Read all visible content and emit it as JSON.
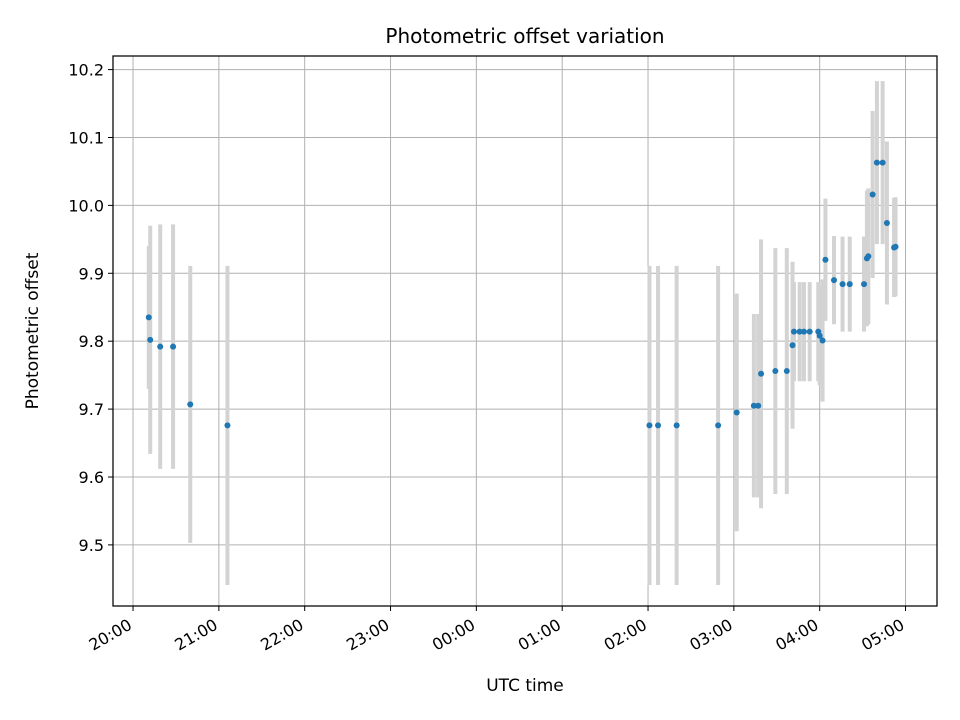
{
  "chart_data": {
    "type": "scatter",
    "title": "Photometric offset variation",
    "xlabel": "UTC time",
    "ylabel": "Photometric offset",
    "grid": true,
    "xlim": [
      "2000-01-01T19:46",
      "2000-01-02T05:22"
    ],
    "ylim": [
      9.41,
      10.22
    ],
    "x_ticks": [
      {
        "value": "2000-01-01T20:00",
        "label": "20:00"
      },
      {
        "value": "2000-01-01T21:00",
        "label": "21:00"
      },
      {
        "value": "2000-01-01T22:00",
        "label": "22:00"
      },
      {
        "value": "2000-01-01T23:00",
        "label": "23:00"
      },
      {
        "value": "2000-01-02T00:00",
        "label": "00:00"
      },
      {
        "value": "2000-01-02T01:00",
        "label": "01:00"
      },
      {
        "value": "2000-01-02T02:00",
        "label": "02:00"
      },
      {
        "value": "2000-01-02T03:00",
        "label": "03:00"
      },
      {
        "value": "2000-01-02T04:00",
        "label": "04:00"
      },
      {
        "value": "2000-01-02T05:00",
        "label": "05:00"
      }
    ],
    "y_ticks": [
      9.5,
      9.6,
      9.7,
      9.8,
      9.9,
      10.0,
      10.1,
      10.2
    ],
    "y_tick_labels": [
      "9.5",
      "9.6",
      "9.7",
      "9.8",
      "9.9",
      "10.0",
      "10.1",
      "10.2"
    ],
    "colors": {
      "points": "#1f77b4",
      "errorbars": "#d3d3d3",
      "grid": "#b0b0b0"
    },
    "points": [
      {
        "t": "2000-01-01T20:11",
        "y": 9.835,
        "err": 0.105
      },
      {
        "t": "2000-01-01T20:12",
        "y": 9.802,
        "err": 0.168
      },
      {
        "t": "2000-01-01T20:19",
        "y": 9.792,
        "err": 0.18
      },
      {
        "t": "2000-01-01T20:28",
        "y": 9.792,
        "err": 0.18
      },
      {
        "t": "2000-01-01T20:40",
        "y": 9.707,
        "err": 0.204
      },
      {
        "t": "2000-01-01T21:06",
        "y": 9.676,
        "err": 0.235
      },
      {
        "t": "2000-01-02T02:01",
        "y": 9.676,
        "err": 0.235
      },
      {
        "t": "2000-01-02T02:07",
        "y": 9.676,
        "err": 0.235
      },
      {
        "t": "2000-01-02T02:20",
        "y": 9.676,
        "err": 0.235
      },
      {
        "t": "2000-01-02T02:49",
        "y": 9.676,
        "err": 0.235
      },
      {
        "t": "2000-01-02T03:02",
        "y": 9.695,
        "err": 0.175
      },
      {
        "t": "2000-01-02T03:14",
        "y": 9.705,
        "err": 0.135
      },
      {
        "t": "2000-01-02T03:17",
        "y": 9.705,
        "err": 0.135
      },
      {
        "t": "2000-01-02T03:19",
        "y": 9.752,
        "err": 0.198
      },
      {
        "t": "2000-01-02T03:29",
        "y": 9.756,
        "err": 0.181
      },
      {
        "t": "2000-01-02T03:37",
        "y": 9.756,
        "err": 0.181
      },
      {
        "t": "2000-01-02T03:41",
        "y": 9.794,
        "err": 0.123
      },
      {
        "t": "2000-01-02T03:42",
        "y": 9.814,
        "err": 0.073
      },
      {
        "t": "2000-01-02T03:46",
        "y": 9.814,
        "err": 0.073
      },
      {
        "t": "2000-01-02T03:49",
        "y": 9.814,
        "err": 0.073
      },
      {
        "t": "2000-01-02T03:53",
        "y": 9.814,
        "err": 0.073
      },
      {
        "t": "2000-01-02T03:59",
        "y": 9.814,
        "err": 0.073
      },
      {
        "t": "2000-01-02T04:00",
        "y": 9.808,
        "err": 0.073
      },
      {
        "t": "2000-01-02T04:02",
        "y": 9.801,
        "err": 0.09
      },
      {
        "t": "2000-01-02T04:04",
        "y": 9.92,
        "err": 0.09
      },
      {
        "t": "2000-01-02T04:10",
        "y": 9.89,
        "err": 0.065
      },
      {
        "t": "2000-01-02T04:16",
        "y": 9.884,
        "err": 0.07
      },
      {
        "t": "2000-01-02T04:21",
        "y": 9.884,
        "err": 0.07
      },
      {
        "t": "2000-01-02T04:31",
        "y": 9.884,
        "err": 0.07
      },
      {
        "t": "2000-01-02T04:33",
        "y": 9.922,
        "err": 0.1
      },
      {
        "t": "2000-01-02T04:34",
        "y": 9.925,
        "err": 0.1
      },
      {
        "t": "2000-01-02T04:37",
        "y": 10.016,
        "err": 0.123
      },
      {
        "t": "2000-01-02T04:40",
        "y": 10.063,
        "err": 0.12
      },
      {
        "t": "2000-01-02T04:44",
        "y": 10.063,
        "err": 0.12
      },
      {
        "t": "2000-01-02T04:47",
        "y": 9.974,
        "err": 0.12
      },
      {
        "t": "2000-01-02T04:52",
        "y": 9.938,
        "err": 0.073
      },
      {
        "t": "2000-01-02T04:53",
        "y": 9.939,
        "err": 0.073
      }
    ]
  }
}
